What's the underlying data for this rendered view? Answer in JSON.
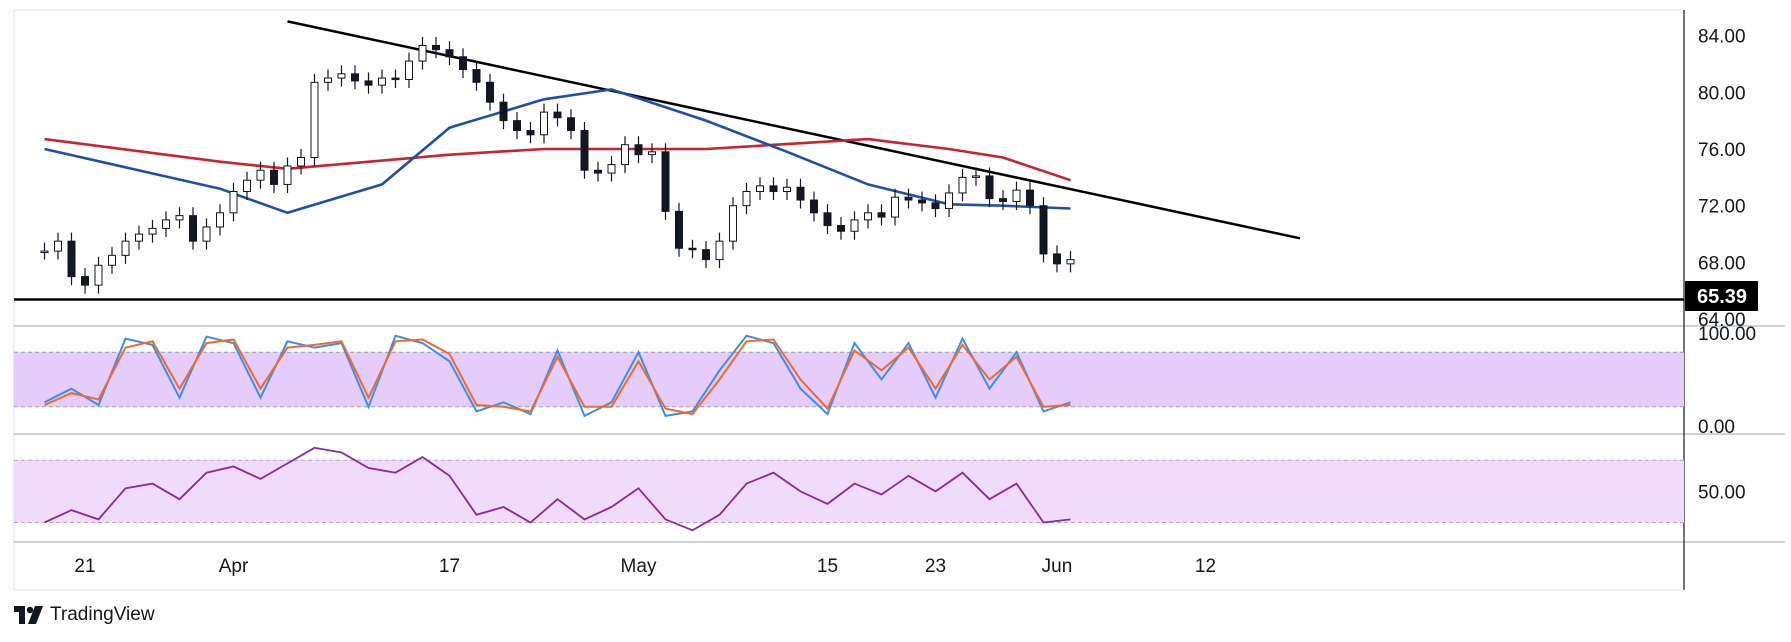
{
  "brand": {
    "name": "TradingView",
    "logo_icon": "tradingview-logo-icon"
  },
  "colors": {
    "candle": "#131722",
    "sma_fast": "#1f4fad",
    "sma_slow": "#c8242e",
    "trendline": "#000000",
    "stoch_k": "#3d8fe6",
    "stoch_d": "#ef6b2a",
    "stoch_band": "#e5ccfa",
    "rsi_line": "#8a2a9c",
    "rsi_band": "#f1dbfb",
    "price_tag_bg": "#000000",
    "price_tag_text": "#ffffff"
  },
  "chart_data": [
    {
      "type": "candlestick",
      "panel": "price",
      "x_tick_labels": [
        "21",
        "Apr",
        "17",
        "May",
        "15",
        "23",
        "Jun",
        "12"
      ],
      "y_tick_labels": [
        "84.00",
        "80.00",
        "76.00",
        "72.00",
        "68.00",
        "64.00"
      ],
      "ylim": [
        63.8,
        85.8
      ],
      "support_level": 65.39,
      "support_label": "65.39",
      "trendline": {
        "start": {
          "date": "Apr 5",
          "value": 85.0
        },
        "end": {
          "date": "Jun 19",
          "value": 69.7
        }
      },
      "closes": [
        {
          "date": "Mar 18",
          "value": 68.8
        },
        {
          "date": "Mar 19",
          "value": 69.5
        },
        {
          "date": "Mar 20",
          "value": 67.0
        },
        {
          "date": "Mar 21",
          "value": 66.4
        },
        {
          "date": "Mar 22",
          "value": 67.8
        },
        {
          "date": "Mar 23",
          "value": 68.5
        },
        {
          "date": "Mar 24",
          "value": 69.5
        },
        {
          "date": "Mar 25",
          "value": 70.0
        },
        {
          "date": "Mar 26",
          "value": 70.4
        },
        {
          "date": "Mar 27",
          "value": 71.0
        },
        {
          "date": "Mar 28",
          "value": 71.3
        },
        {
          "date": "Mar 29",
          "value": 69.5
        },
        {
          "date": "Mar 30",
          "value": 70.5
        },
        {
          "date": "Mar 31",
          "value": 71.5
        },
        {
          "date": "Apr 1",
          "value": 73.0
        },
        {
          "date": "Apr 2",
          "value": 73.8
        },
        {
          "date": "Apr 3",
          "value": 74.5
        },
        {
          "date": "Apr 4",
          "value": 73.5
        },
        {
          "date": "Apr 5",
          "value": 74.8
        },
        {
          "date": "Apr 6",
          "value": 75.4
        },
        {
          "date": "Apr 7",
          "value": 80.7
        },
        {
          "date": "Apr 8",
          "value": 81.0
        },
        {
          "date": "Apr 9",
          "value": 81.3
        },
        {
          "date": "Apr 10",
          "value": 80.8
        },
        {
          "date": "Apr 11",
          "value": 80.5
        },
        {
          "date": "Apr 12",
          "value": 81.0
        },
        {
          "date": "Apr 13",
          "value": 80.9
        },
        {
          "date": "Apr 14",
          "value": 82.2
        },
        {
          "date": "Apr 15",
          "value": 83.3
        },
        {
          "date": "Apr 16",
          "value": 83.0
        },
        {
          "date": "Apr 17",
          "value": 82.5
        },
        {
          "date": "Apr 18",
          "value": 81.6
        },
        {
          "date": "Apr 19",
          "value": 80.7
        },
        {
          "date": "Apr 20",
          "value": 79.3
        },
        {
          "date": "Apr 21",
          "value": 78.0
        },
        {
          "date": "Apr 22",
          "value": 77.3
        },
        {
          "date": "Apr 23",
          "value": 77.0
        },
        {
          "date": "Apr 24",
          "value": 78.6
        },
        {
          "date": "Apr 25",
          "value": 78.2
        },
        {
          "date": "Apr 26",
          "value": 77.3
        },
        {
          "date": "Apr 27",
          "value": 74.5
        },
        {
          "date": "Apr 28",
          "value": 74.3
        },
        {
          "date": "Apr 29",
          "value": 74.9
        },
        {
          "date": "Apr 30",
          "value": 76.3
        },
        {
          "date": "May 1",
          "value": 75.6
        },
        {
          "date": "May 2",
          "value": 75.8
        },
        {
          "date": "May 3",
          "value": 71.6
        },
        {
          "date": "May 4",
          "value": 69.0
        },
        {
          "date": "May 5",
          "value": 68.9
        },
        {
          "date": "May 6",
          "value": 68.2
        },
        {
          "date": "May 7",
          "value": 69.5
        },
        {
          "date": "May 8",
          "value": 72.0
        },
        {
          "date": "May 9",
          "value": 73.0
        },
        {
          "date": "May 10",
          "value": 73.4
        },
        {
          "date": "May 11",
          "value": 73.0
        },
        {
          "date": "May 12",
          "value": 73.3
        },
        {
          "date": "May 13",
          "value": 72.4
        },
        {
          "date": "May 14",
          "value": 71.5
        },
        {
          "date": "May 15",
          "value": 70.6
        },
        {
          "date": "May 16",
          "value": 70.2
        },
        {
          "date": "May 17",
          "value": 71.0
        },
        {
          "date": "May 18",
          "value": 71.5
        },
        {
          "date": "May 19",
          "value": 71.2
        },
        {
          "date": "May 20",
          "value": 72.6
        },
        {
          "date": "May 21",
          "value": 72.4
        },
        {
          "date": "May 22",
          "value": 72.2
        },
        {
          "date": "May 23",
          "value": 71.8
        },
        {
          "date": "May 24",
          "value": 72.9
        },
        {
          "date": "May 25",
          "value": 74.0
        },
        {
          "date": "May 26",
          "value": 74.1
        },
        {
          "date": "May 27",
          "value": 72.5
        },
        {
          "date": "May 28",
          "value": 72.3
        },
        {
          "date": "May 29",
          "value": 73.1
        },
        {
          "date": "May 30",
          "value": 72.0
        },
        {
          "date": "May 31",
          "value": 68.6
        },
        {
          "date": "Jun 1",
          "value": 67.9
        },
        {
          "date": "Jun 2",
          "value": 68.2
        }
      ],
      "sma_fast": [
        {
          "date": "Mar 18",
          "value": 76.0
        },
        {
          "date": "Mar 31",
          "value": 73.2
        },
        {
          "date": "Apr 5",
          "value": 71.5
        },
        {
          "date": "Apr 12",
          "value": 73.5
        },
        {
          "date": "Apr 17",
          "value": 77.5
        },
        {
          "date": "Apr 24",
          "value": 79.5
        },
        {
          "date": "Apr 29",
          "value": 80.2
        },
        {
          "date": "May 6",
          "value": 78.0
        },
        {
          "date": "May 12",
          "value": 75.8
        },
        {
          "date": "May 18",
          "value": 73.5
        },
        {
          "date": "May 24",
          "value": 72.1
        },
        {
          "date": "May 28",
          "value": 72.0
        },
        {
          "date": "Jun 2",
          "value": 71.8
        }
      ],
      "sma_slow": [
        {
          "date": "Mar 18",
          "value": 76.7
        },
        {
          "date": "Mar 31",
          "value": 75.1
        },
        {
          "date": "Apr 5",
          "value": 74.6
        },
        {
          "date": "Apr 17",
          "value": 75.6
        },
        {
          "date": "Apr 24",
          "value": 76.0
        },
        {
          "date": "May 6",
          "value": 76.0
        },
        {
          "date": "May 18",
          "value": 76.7
        },
        {
          "date": "May 24",
          "value": 76.0
        },
        {
          "date": "May 28",
          "value": 75.4
        },
        {
          "date": "Jun 2",
          "value": 73.8
        }
      ]
    },
    {
      "type": "line",
      "panel": "stochastic",
      "y_tick_labels": [
        "100.00",
        "0.00"
      ],
      "ylim": [
        0,
        100
      ],
      "bands": [
        20,
        80
      ],
      "series": [
        {
          "key": "k",
          "values": [
            {
              "date": "Mar 18",
              "value": 25
            },
            {
              "date": "Mar 20",
              "value": 40
            },
            {
              "date": "Mar 22",
              "value": 22
            },
            {
              "date": "Mar 24",
              "value": 95
            },
            {
              "date": "Mar 26",
              "value": 88
            },
            {
              "date": "Mar 28",
              "value": 30
            },
            {
              "date": "Mar 30",
              "value": 97
            },
            {
              "date": "Apr 1",
              "value": 90
            },
            {
              "date": "Apr 3",
              "value": 30
            },
            {
              "date": "Apr 5",
              "value": 92
            },
            {
              "date": "Apr 7",
              "value": 85
            },
            {
              "date": "Apr 9",
              "value": 90
            },
            {
              "date": "Apr 11",
              "value": 20
            },
            {
              "date": "Apr 13",
              "value": 98
            },
            {
              "date": "Apr 15",
              "value": 90
            },
            {
              "date": "Apr 17",
              "value": 70
            },
            {
              "date": "Apr 19",
              "value": 15
            },
            {
              "date": "Apr 21",
              "value": 25
            },
            {
              "date": "Apr 23",
              "value": 12
            },
            {
              "date": "Apr 25",
              "value": 82
            },
            {
              "date": "Apr 27",
              "value": 10
            },
            {
              "date": "Apr 29",
              "value": 25
            },
            {
              "date": "May 1",
              "value": 80
            },
            {
              "date": "May 3",
              "value": 10
            },
            {
              "date": "May 5",
              "value": 15
            },
            {
              "date": "May 7",
              "value": 60
            },
            {
              "date": "May 9",
              "value": 98
            },
            {
              "date": "May 11",
              "value": 90
            },
            {
              "date": "May 13",
              "value": 40
            },
            {
              "date": "May 15",
              "value": 12
            },
            {
              "date": "May 17",
              "value": 90
            },
            {
              "date": "May 19",
              "value": 50
            },
            {
              "date": "May 21",
              "value": 90
            },
            {
              "date": "May 23",
              "value": 30
            },
            {
              "date": "May 25",
              "value": 95
            },
            {
              "date": "May 27",
              "value": 40
            },
            {
              "date": "May 29",
              "value": 80
            },
            {
              "date": "May 31",
              "value": 15
            },
            {
              "date": "Jun 2",
              "value": 25
            }
          ]
        },
        {
          "key": "d",
          "values": [
            {
              "date": "Mar 18",
              "value": 22
            },
            {
              "date": "Mar 20",
              "value": 35
            },
            {
              "date": "Mar 22",
              "value": 28
            },
            {
              "date": "Mar 24",
              "value": 85
            },
            {
              "date": "Mar 26",
              "value": 92
            },
            {
              "date": "Mar 28",
              "value": 40
            },
            {
              "date": "Mar 30",
              "value": 90
            },
            {
              "date": "Apr 1",
              "value": 94
            },
            {
              "date": "Apr 3",
              "value": 40
            },
            {
              "date": "Apr 5",
              "value": 85
            },
            {
              "date": "Apr 7",
              "value": 88
            },
            {
              "date": "Apr 9",
              "value": 92
            },
            {
              "date": "Apr 11",
              "value": 30
            },
            {
              "date": "Apr 13",
              "value": 92
            },
            {
              "date": "Apr 15",
              "value": 94
            },
            {
              "date": "Apr 17",
              "value": 78
            },
            {
              "date": "Apr 19",
              "value": 22
            },
            {
              "date": "Apr 21",
              "value": 20
            },
            {
              "date": "Apr 23",
              "value": 15
            },
            {
              "date": "Apr 25",
              "value": 75
            },
            {
              "date": "Apr 27",
              "value": 20
            },
            {
              "date": "Apr 29",
              "value": 20
            },
            {
              "date": "May 1",
              "value": 70
            },
            {
              "date": "May 3",
              "value": 18
            },
            {
              "date": "May 5",
              "value": 12
            },
            {
              "date": "May 7",
              "value": 50
            },
            {
              "date": "May 9",
              "value": 92
            },
            {
              "date": "May 11",
              "value": 94
            },
            {
              "date": "May 13",
              "value": 50
            },
            {
              "date": "May 15",
              "value": 18
            },
            {
              "date": "May 17",
              "value": 82
            },
            {
              "date": "May 19",
              "value": 60
            },
            {
              "date": "May 21",
              "value": 85
            },
            {
              "date": "May 23",
              "value": 40
            },
            {
              "date": "May 25",
              "value": 88
            },
            {
              "date": "May 27",
              "value": 50
            },
            {
              "date": "May 29",
              "value": 75
            },
            {
              "date": "May 31",
              "value": 20
            },
            {
              "date": "Jun 2",
              "value": 22
            }
          ]
        }
      ]
    },
    {
      "type": "line",
      "panel": "rsi",
      "y_tick_labels": [
        "50.00"
      ],
      "ylim": [
        22,
        83
      ],
      "bands": [
        30,
        70
      ],
      "series": [
        {
          "key": "rsi",
          "values": [
            {
              "date": "Mar 18",
              "value": 30
            },
            {
              "date": "Mar 20",
              "value": 38
            },
            {
              "date": "Mar 22",
              "value": 32
            },
            {
              "date": "Mar 24",
              "value": 52
            },
            {
              "date": "Mar 26",
              "value": 55
            },
            {
              "date": "Mar 28",
              "value": 45
            },
            {
              "date": "Mar 30",
              "value": 62
            },
            {
              "date": "Apr 1",
              "value": 66
            },
            {
              "date": "Apr 3",
              "value": 58
            },
            {
              "date": "Apr 5",
              "value": 68
            },
            {
              "date": "Apr 7",
              "value": 78
            },
            {
              "date": "Apr 9",
              "value": 75
            },
            {
              "date": "Apr 11",
              "value": 65
            },
            {
              "date": "Apr 13",
              "value": 62
            },
            {
              "date": "Apr 15",
              "value": 72
            },
            {
              "date": "Apr 17",
              "value": 60
            },
            {
              "date": "Apr 19",
              "value": 35
            },
            {
              "date": "Apr 21",
              "value": 40
            },
            {
              "date": "Apr 23",
              "value": 30
            },
            {
              "date": "Apr 25",
              "value": 45
            },
            {
              "date": "Apr 27",
              "value": 32
            },
            {
              "date": "Apr 29",
              "value": 40
            },
            {
              "date": "May 1",
              "value": 52
            },
            {
              "date": "May 3",
              "value": 32
            },
            {
              "date": "May 5",
              "value": 25
            },
            {
              "date": "May 7",
              "value": 35
            },
            {
              "date": "May 9",
              "value": 55
            },
            {
              "date": "May 11",
              "value": 62
            },
            {
              "date": "May 13",
              "value": 50
            },
            {
              "date": "May 15",
              "value": 42
            },
            {
              "date": "May 17",
              "value": 55
            },
            {
              "date": "May 19",
              "value": 48
            },
            {
              "date": "May 21",
              "value": 60
            },
            {
              "date": "May 23",
              "value": 50
            },
            {
              "date": "May 25",
              "value": 62
            },
            {
              "date": "May 27",
              "value": 45
            },
            {
              "date": "May 29",
              "value": 55
            },
            {
              "date": "May 31",
              "value": 30
            },
            {
              "date": "Jun 2",
              "value": 32
            }
          ]
        }
      ]
    }
  ]
}
